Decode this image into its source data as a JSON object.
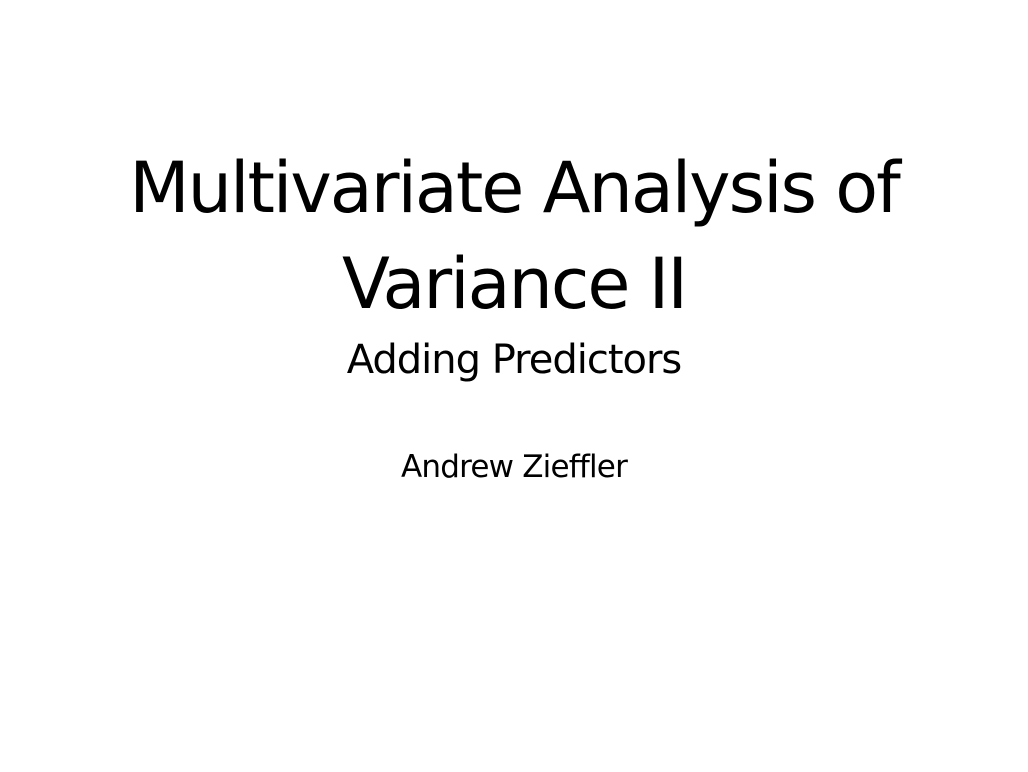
{
  "slide": {
    "title_line_1": "Multivariate Analysis of",
    "title_line_2": "Variance II",
    "subtitle": "Adding Predictors",
    "author": "Andrew Zieffler"
  }
}
